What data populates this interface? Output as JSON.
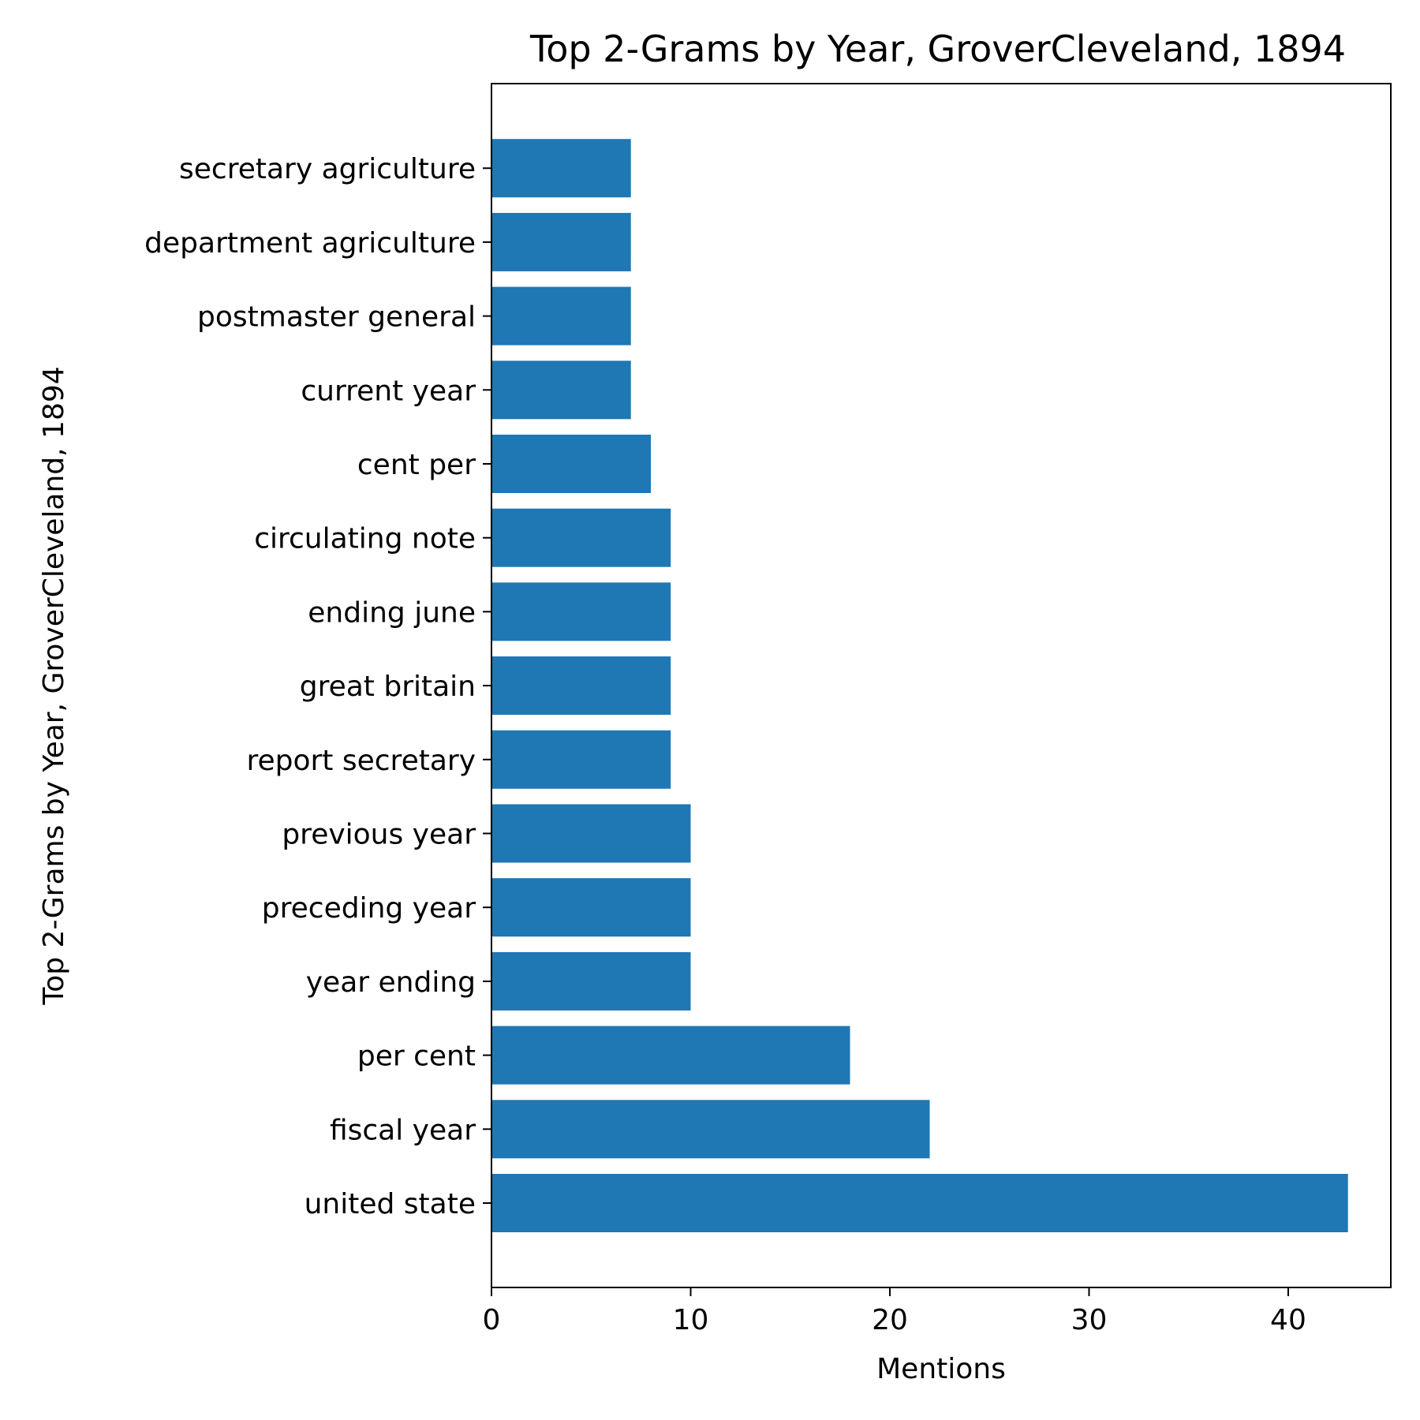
{
  "chart_data": {
    "type": "bar",
    "orientation": "horizontal",
    "title": "Top 2-Grams by Year, GroverCleveland, 1894",
    "xlabel": "Mentions",
    "ylabel": "Top 2-Grams by Year, GroverCleveland, 1894",
    "xlim": [
      0,
      45.15
    ],
    "xticks": [
      0,
      10,
      20,
      30,
      40
    ],
    "grid": false,
    "bar_color": "#1f77b4",
    "categories": [
      "united state",
      "fiscal year",
      "per cent",
      "year ending",
      "preceding year",
      "previous year",
      "report secretary",
      "great britain",
      "ending june",
      "circulating note",
      "cent per",
      "current year",
      "postmaster general",
      "department agriculture",
      "secretary agriculture"
    ],
    "values": [
      43,
      22,
      18,
      10,
      10,
      10,
      9,
      9,
      9,
      9,
      8,
      7,
      7,
      7,
      7
    ]
  }
}
